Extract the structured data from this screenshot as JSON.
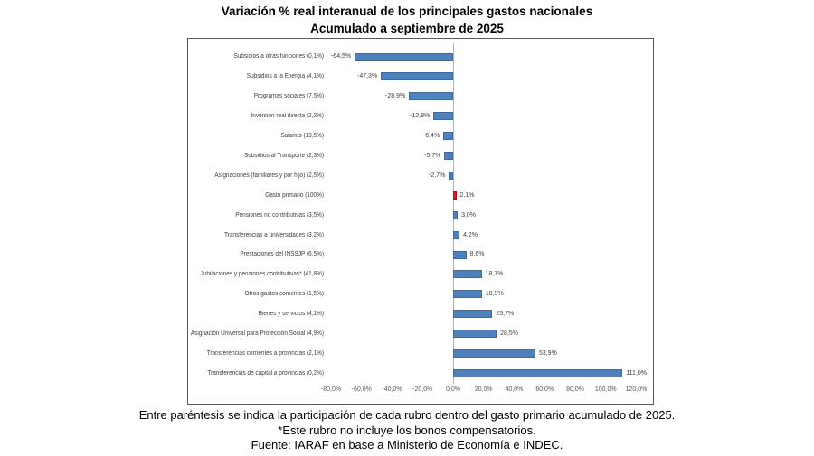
{
  "title": {
    "line1": "Variación % real interanual de los principales gastos nacionales",
    "line2": "Acumulado a septiembre de 2025"
  },
  "chart_data": {
    "type": "bar",
    "orientation": "horizontal",
    "title": "Variación % real interanual de los principales gastos nacionales - Acumulado a septiembre de 2025",
    "xlabel": "",
    "ylabel": "",
    "xlim": [
      -80,
      120
    ],
    "x_tick_values": [
      -80,
      -60,
      -40,
      -20,
      0,
      20,
      40,
      60,
      80,
      100,
      120
    ],
    "x_tick_labels": [
      "-80,0%",
      "-60,0%",
      "-40,0%",
      "-20,0%",
      "0,0%",
      "20,0%",
      "40,0%",
      "60,0%",
      "80,0%",
      "100,0%",
      "120,0%"
    ],
    "grid": false,
    "legend": false,
    "bar_color": "#4f81bd",
    "bar_border_color": "#3c699f",
    "highlight_color": "#e01b24",
    "highlight_border_color": "#a8121a",
    "rows": [
      {
        "label": "Subsidios a otras funciones (0,1%)",
        "value": -64.5,
        "value_label": "-64,5%"
      },
      {
        "label": "Subsidios a la Energía (4,1%)",
        "value": -47.3,
        "value_label": "-47,3%"
      },
      {
        "label": "Programas sociales (7,5%)",
        "value": -28.9,
        "value_label": "-28,9%"
      },
      {
        "label": "Inversión real directa (2,2%)",
        "value": -12.8,
        "value_label": "-12,8%"
      },
      {
        "label": "Salarios (13,5%)",
        "value": -6.4,
        "value_label": "-6,4%"
      },
      {
        "label": "Subsidios al Transporte (2,3%)",
        "value": -5.7,
        "value_label": "-5,7%"
      },
      {
        "label": "Asignaciones (familiares y por hijo) (2,5%)",
        "value": -2.7,
        "value_label": "-2,7%"
      },
      {
        "label": "Gasto primario (100%)",
        "value": 2.1,
        "value_label": "2,1%",
        "highlight": true
      },
      {
        "label": "Pensiones no contributivas (3,5%)",
        "value": 3.0,
        "value_label": "3,0%"
      },
      {
        "label": "Transferencias a universidades (3,2%)",
        "value": 4.2,
        "value_label": "4,2%"
      },
      {
        "label": "Prestaciones del INSSJP (6,5%)",
        "value": 8.6,
        "value_label": "8,6%"
      },
      {
        "label": "Jubilaciones y pensiones contributivas* (41,8%)",
        "value": 18.7,
        "value_label": "18,7%"
      },
      {
        "label": "Otros gastos corrientes (1,5%)",
        "value": 18.9,
        "value_label": "18,9%"
      },
      {
        "label": "Bienes y servicios (4,1%)",
        "value": 25.7,
        "value_label": "25,7%"
      },
      {
        "label": "Asignación Universal para Protección Social (4,9%)",
        "value": 28.5,
        "value_label": "28,5%"
      },
      {
        "label": "Transferencias corrientes a provincias (2,1%)",
        "value": 53.9,
        "value_label": "53,9%"
      },
      {
        "label": "Transferencias de capital a provincias (0,2%)",
        "value": 111.0,
        "value_label": "111,0%"
      }
    ]
  },
  "footer": {
    "line1": "Entre paréntesis se indica la participación de cada rubro dentro del gasto primario acumulado de 2025.",
    "line2": "*Este rubro no incluye los bonos compensatorios.",
    "line3": "Fuente: IARAF en base a Ministerio de Economía e INDEC."
  }
}
